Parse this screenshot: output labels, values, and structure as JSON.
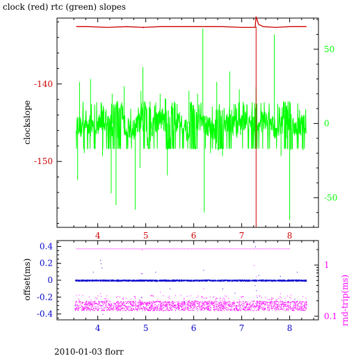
{
  "figure": {
    "title": "clock (red) rtc (green) slopes",
    "footer": "2010-01-03 florr"
  },
  "colors": {
    "frame": "#000000",
    "red": "#cc0000",
    "green": "#00ff00",
    "blue": "#0000cc",
    "magenta": "#ff00ff"
  },
  "chart_data": [
    {
      "type": "line",
      "panel": "top",
      "title": "clock (red) rtc (green) slopes",
      "xlabel": "",
      "xlim": [
        3.15,
        8.6
      ],
      "x_ticks": [
        4,
        5,
        6,
        7,
        8
      ],
      "x_tick_color": "#cc0000",
      "ylabel_left": "clockslope",
      "ylim_left": [
        -158.5,
        -131.5
      ],
      "y_ticks_left": [
        -140,
        -150
      ],
      "y_tick_color_left": "#cc0000",
      "ylim_right": [
        -70,
        71
      ],
      "y_ticks_right": [
        50,
        0,
        -50
      ],
      "y_tick_color_right": "#00ff00",
      "grid": false,
      "series": [
        {
          "axis": "left",
          "color": "#cc0000",
          "x": [
            3.55,
            3.8,
            4.2,
            4.6,
            4.95,
            5.3,
            6.0,
            6.6,
            7.0,
            7.28,
            7.3,
            7.35,
            7.45,
            7.7,
            8.0,
            8.35
          ],
          "y": [
            -132.6,
            -132.6,
            -132.7,
            -132.6,
            -132.7,
            -132.6,
            -132.6,
            -132.6,
            -132.7,
            -132.7,
            -131.3,
            -132.3,
            -132.6,
            -132.7,
            -132.6,
            -132.6
          ],
          "spikes": [
            {
              "x": 4.95,
              "y": -132.8
            },
            {
              "x": 7.3,
              "y": -158.5
            }
          ]
        },
        {
          "axis": "right",
          "color": "#00ff00",
          "x": [
            3.55,
            3.65,
            3.75,
            3.9,
            4.1,
            4.3,
            4.5,
            4.7,
            4.9,
            5.1,
            5.3,
            5.5,
            5.7,
            5.9,
            6.1,
            6.3,
            6.5,
            6.7,
            6.9,
            7.1,
            7.3,
            7.5,
            7.7,
            7.9,
            8.1,
            8.3,
            8.35
          ],
          "y": [
            1,
            -3,
            2,
            -4,
            3,
            -2,
            1,
            -6,
            2,
            -3,
            4,
            -1,
            2,
            -7,
            3,
            -2,
            -5,
            1,
            -3,
            2,
            -1,
            3,
            -4,
            1,
            -2,
            0,
            -2
          ],
          "spikes": [
            {
              "x": 3.58,
              "y": -38
            },
            {
              "x": 3.62,
              "y": 28
            },
            {
              "x": 3.72,
              "y": -20
            },
            {
              "x": 3.85,
              "y": 30
            },
            {
              "x": 4.1,
              "y": -22
            },
            {
              "x": 4.28,
              "y": -47
            },
            {
              "x": 4.3,
              "y": 20
            },
            {
              "x": 4.38,
              "y": -55
            },
            {
              "x": 4.55,
              "y": 25
            },
            {
              "x": 4.78,
              "y": -58
            },
            {
              "x": 4.88,
              "y": -30
            },
            {
              "x": 4.9,
              "y": 22
            },
            {
              "x": 4.94,
              "y": 38
            },
            {
              "x": 5.3,
              "y": 20
            },
            {
              "x": 5.45,
              "y": -35
            },
            {
              "x": 5.9,
              "y": 22
            },
            {
              "x": 6.08,
              "y": 20
            },
            {
              "x": 6.19,
              "y": 64
            },
            {
              "x": 6.22,
              "y": -60
            },
            {
              "x": 6.35,
              "y": -20
            },
            {
              "x": 6.48,
              "y": 28
            },
            {
              "x": 6.6,
              "y": -22
            },
            {
              "x": 6.75,
              "y": 35
            },
            {
              "x": 6.95,
              "y": 23
            },
            {
              "x": 7.3,
              "y": 25
            },
            {
              "x": 7.68,
              "y": 60
            },
            {
              "x": 7.82,
              "y": -22
            },
            {
              "x": 8.0,
              "y": -65
            },
            {
              "x": 8.02,
              "y": -18
            },
            {
              "x": 8.28,
              "y": -18
            }
          ],
          "noise_band": [
            -17,
            15
          ],
          "dense_x_ranges": [
            [
              4.32,
              4.5
            ],
            [
              4.95,
              5.1
            ],
            [
              5.4,
              5.6
            ],
            [
              5.9,
              6.05
            ],
            [
              6.45,
              6.62
            ],
            [
              7.2,
              7.32
            ],
            [
              7.88,
              7.98
            ]
          ]
        }
      ]
    },
    {
      "type": "scatter",
      "panel": "bottom",
      "xlabel": "",
      "xlim": [
        3.15,
        8.6
      ],
      "x_ticks": [
        4,
        5,
        6,
        7,
        8
      ],
      "x_tick_color": "#0000cc",
      "ylabel_left": "offset(ms)",
      "ylim_left": [
        -0.47,
        0.47
      ],
      "y_ticks_left": [
        0.4,
        0.2,
        0,
        -0.2,
        -0.4
      ],
      "y_tick_color_left": "#0000cc",
      "ylabel_right": "rnd-trip(ms)",
      "y_scale_right": "log",
      "ylim_right": [
        0.085,
        3.0
      ],
      "y_ticks_right": [
        1,
        0.1
      ],
      "y_tick_color_right": "#ff00ff",
      "grid": false,
      "series": [
        {
          "name": "offset",
          "axis": "left",
          "color": "#0000cc",
          "x_range": [
            3.52,
            8.35
          ],
          "baseline": 0.0,
          "band": [
            -0.008,
            0.008
          ],
          "outliers": [
            {
              "x": 4.05,
              "y": 0.24
            },
            {
              "x": 4.06,
              "y": 0.2
            },
            {
              "x": 4.07,
              "y": -0.25
            },
            {
              "x": 4.08,
              "y": -0.3
            },
            {
              "x": 4.1,
              "y": -0.4
            },
            {
              "x": 4.08,
              "y": 0.15
            },
            {
              "x": 3.9,
              "y": 0.1
            },
            {
              "x": 3.52,
              "y": -0.3
            },
            {
              "x": 4.9,
              "y": -0.2
            },
            {
              "x": 4.92,
              "y": 0.08
            },
            {
              "x": 5.5,
              "y": -0.1
            },
            {
              "x": 5.8,
              "y": -0.25
            },
            {
              "x": 5.2,
              "y": 0.1
            },
            {
              "x": 6.2,
              "y": 0.12
            },
            {
              "x": 6.6,
              "y": -0.1
            },
            {
              "x": 6.85,
              "y": -0.15
            },
            {
              "x": 7.25,
              "y": 0.45
            },
            {
              "x": 7.28,
              "y": 0.4
            },
            {
              "x": 7.27,
              "y": -0.06
            },
            {
              "x": 7.3,
              "y": -0.12
            },
            {
              "x": 7.32,
              "y": -0.2
            },
            {
              "x": 7.35,
              "y": 0.06
            },
            {
              "x": 7.8,
              "y": 0.05
            },
            {
              "x": 8.1,
              "y": -0.22
            },
            {
              "x": 8.15,
              "y": 0.1
            }
          ]
        },
        {
          "name": "rnd-trip",
          "axis": "right",
          "color": "#ff00ff",
          "x_range": [
            3.52,
            8.35
          ],
          "main_band": [
            0.13,
            0.2
          ],
          "upper_level": 2.1,
          "upper_x_range": [
            3.55,
            8.0
          ],
          "outliers": [
            {
              "x": 4.05,
              "y": 0.28
            },
            {
              "x": 4.08,
              "y": 0.5
            },
            {
              "x": 4.9,
              "y": 0.7
            },
            {
              "x": 4.92,
              "y": 2.0
            },
            {
              "x": 5.3,
              "y": 0.3
            },
            {
              "x": 6.2,
              "y": 0.35
            },
            {
              "x": 7.25,
              "y": 1.0
            },
            {
              "x": 7.3,
              "y": 0.6
            },
            {
              "x": 7.8,
              "y": 0.28
            }
          ]
        }
      ]
    }
  ]
}
